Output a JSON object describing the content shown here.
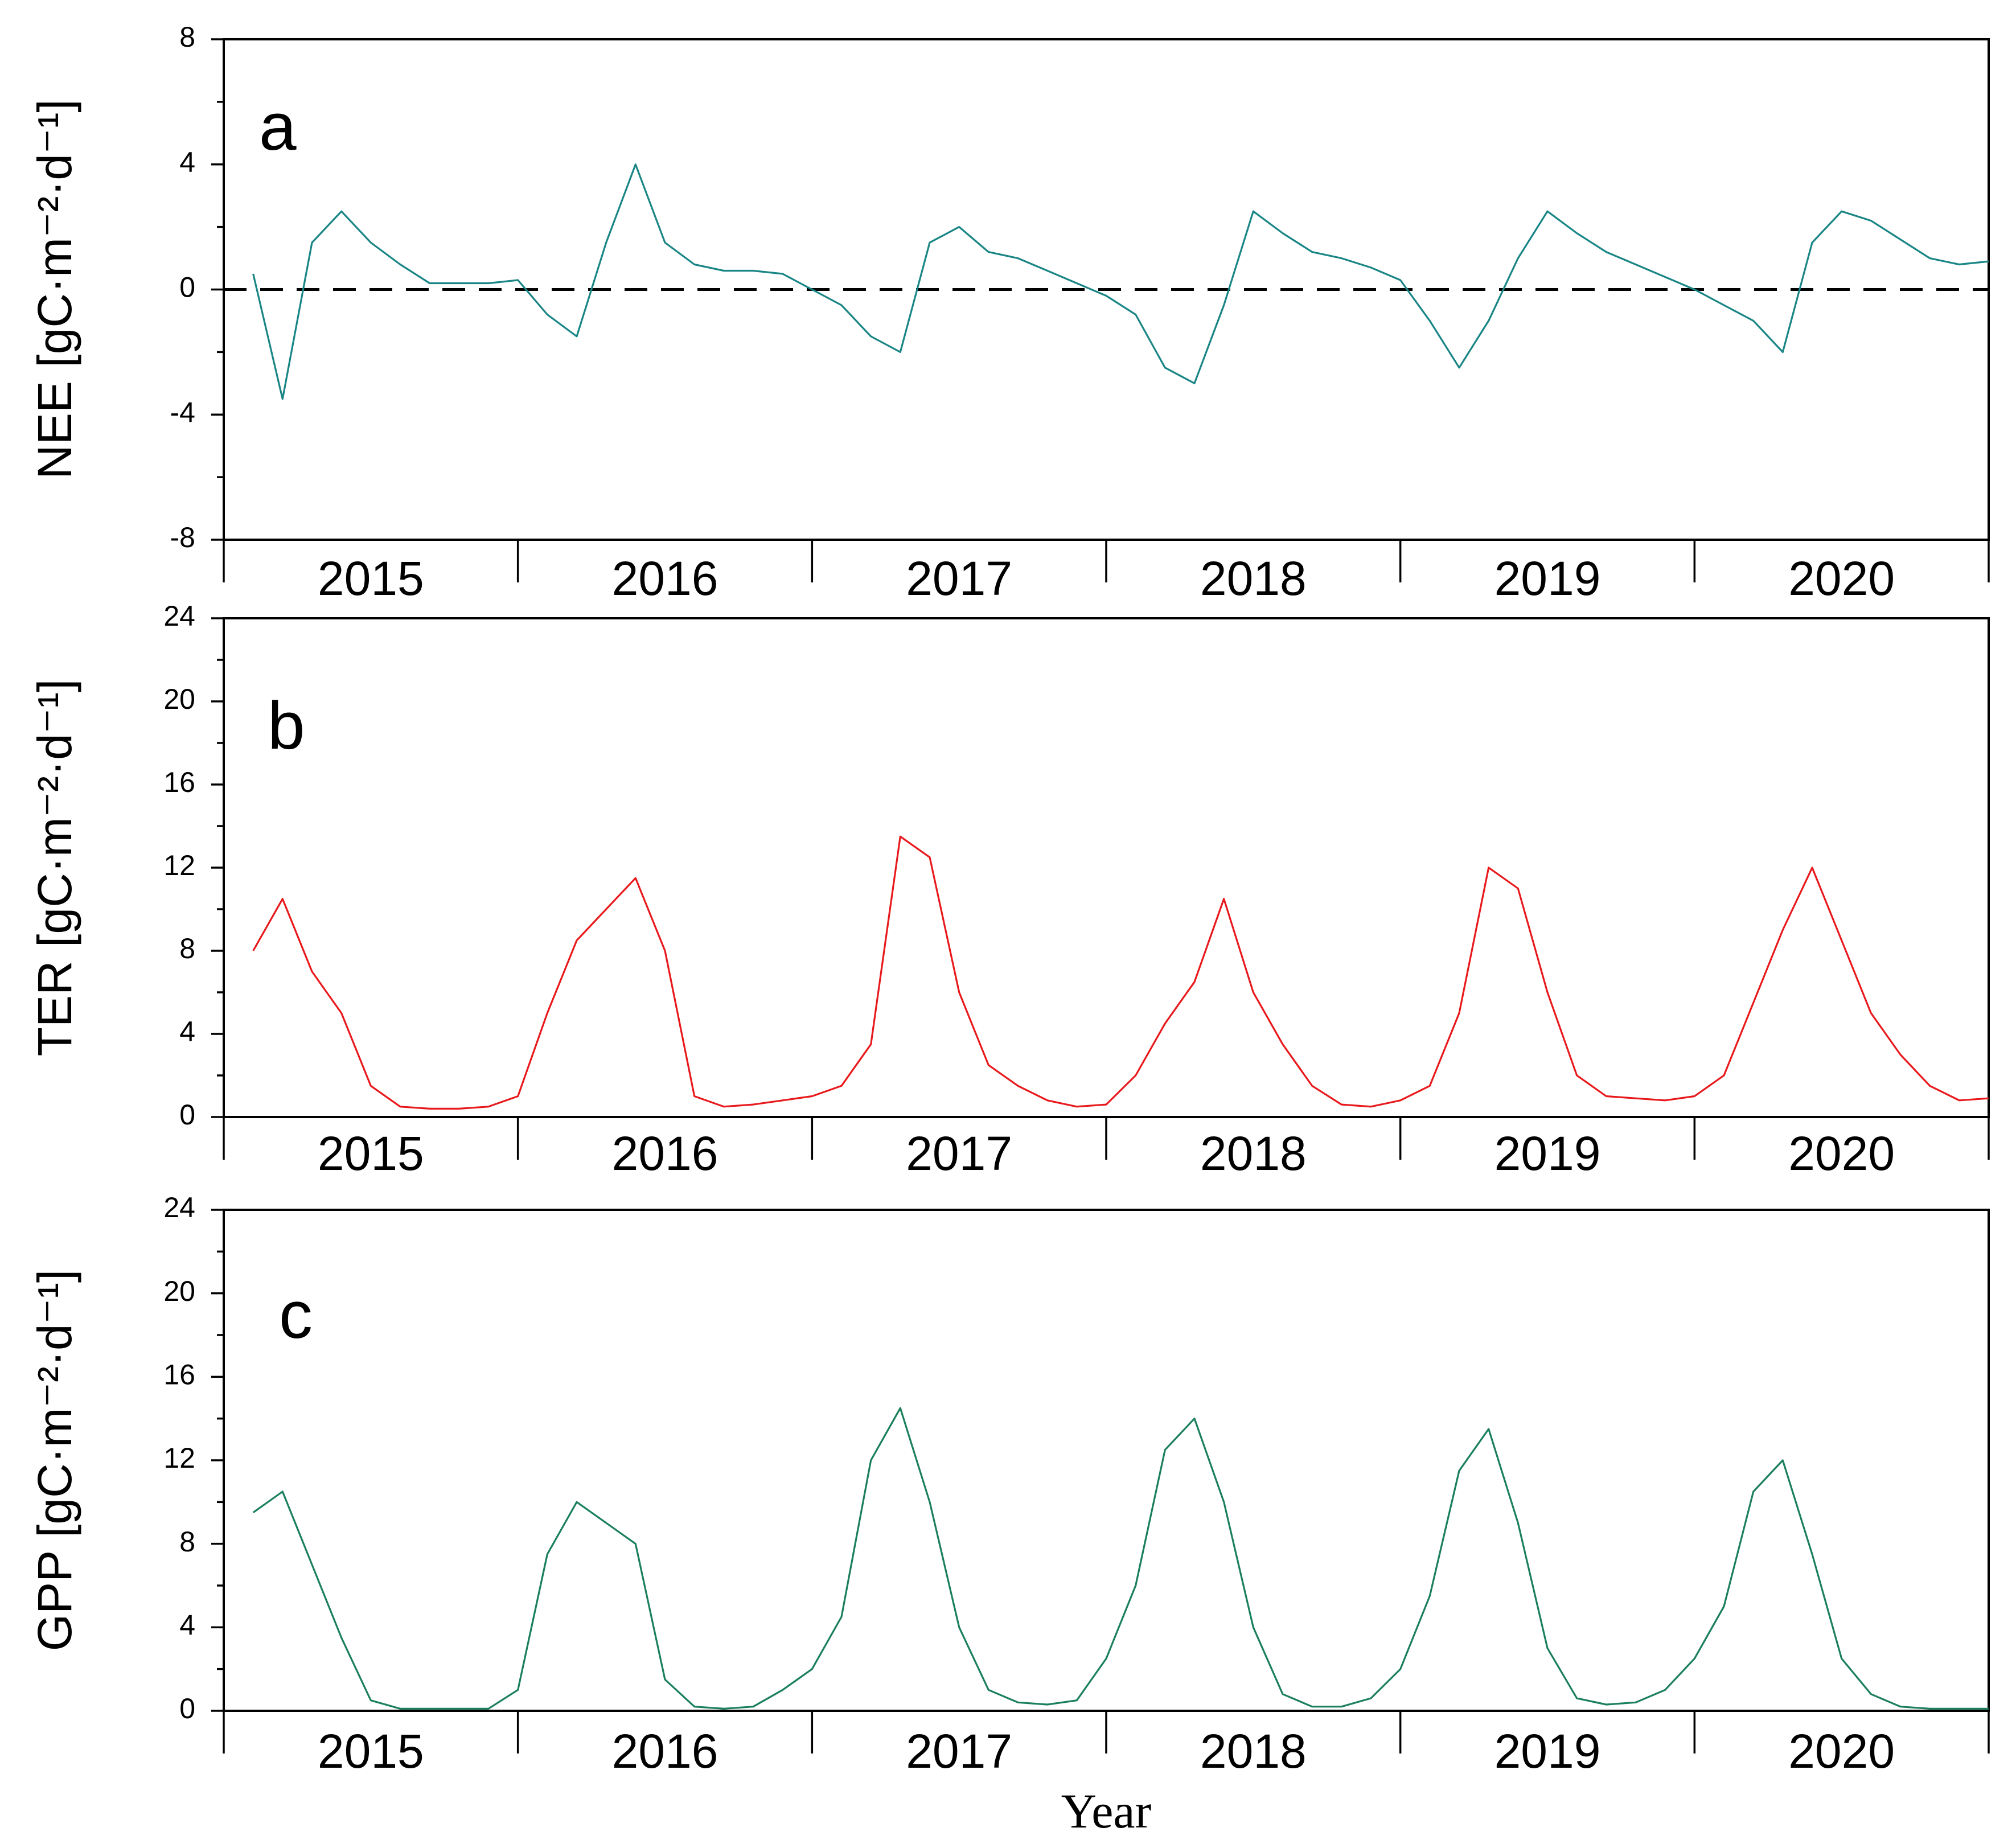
{
  "chart_data": [
    {
      "type": "line",
      "panel_label": "a",
      "ylabel": "NEE [gC·m⁻²·d⁻¹]",
      "ylim": [
        -8,
        8
      ],
      "yticks": [
        -8,
        -4,
        0,
        4,
        8
      ],
      "categories": [
        "2015",
        "2016",
        "2017",
        "2018",
        "2019",
        "2020"
      ],
      "reference_line": 0,
      "series": [
        {
          "name": "NEE",
          "color": "#1A8585",
          "x": [
            2015.1,
            2015.2,
            2015.3,
            2015.4,
            2015.5,
            2015.6,
            2015.7,
            2015.8,
            2015.9,
            2016.0,
            2016.1,
            2016.2,
            2016.3,
            2016.4,
            2016.5,
            2016.6,
            2016.7,
            2016.8,
            2016.9,
            2017.0,
            2017.1,
            2017.2,
            2017.3,
            2017.4,
            2017.5,
            2017.6,
            2017.7,
            2017.8,
            2017.9,
            2018.0,
            2018.1,
            2018.2,
            2018.3,
            2018.4,
            2018.5,
            2018.6,
            2018.7,
            2018.8,
            2018.9,
            2019.0,
            2019.1,
            2019.2,
            2019.3,
            2019.4,
            2019.5,
            2019.6,
            2019.7,
            2019.8,
            2019.9,
            2020.0,
            2020.1,
            2020.2,
            2020.3,
            2020.4,
            2020.5,
            2020.6,
            2020.7,
            2020.8,
            2020.9,
            2021.0
          ],
          "values": [
            0.5,
            -3.5,
            1.5,
            2.5,
            1.5,
            0.8,
            0.2,
            0.2,
            0.2,
            0.3,
            -0.8,
            -1.5,
            1.5,
            4.0,
            1.5,
            0.8,
            0.6,
            0.6,
            0.5,
            0.0,
            -0.5,
            -1.5,
            -2.0,
            1.5,
            2.0,
            1.2,
            1.0,
            0.6,
            0.2,
            -0.2,
            -0.8,
            -2.5,
            -3.0,
            -0.5,
            2.5,
            1.8,
            1.2,
            1.0,
            0.7,
            0.3,
            -1.0,
            -2.5,
            -1.0,
            1.0,
            2.5,
            1.8,
            1.2,
            0.8,
            0.4,
            0.0,
            -0.5,
            -1.0,
            -2.0,
            1.5,
            2.5,
            2.2,
            1.6,
            1.0,
            0.8,
            0.9
          ]
        }
      ]
    },
    {
      "type": "line",
      "panel_label": "b",
      "ylabel": "TER [gC·m⁻²·d⁻¹]",
      "ylim": [
        0,
        24
      ],
      "yticks": [
        0,
        4,
        8,
        12,
        16,
        20,
        24
      ],
      "categories": [
        "2015",
        "2016",
        "2017",
        "2018",
        "2019",
        "2020"
      ],
      "series": [
        {
          "name": "TER",
          "color": "#E8191C",
          "x": [
            2015.1,
            2015.2,
            2015.3,
            2015.4,
            2015.5,
            2015.6,
            2015.7,
            2015.8,
            2015.9,
            2016.0,
            2016.1,
            2016.2,
            2016.3,
            2016.4,
            2016.5,
            2016.6,
            2016.7,
            2016.8,
            2016.9,
            2017.0,
            2017.1,
            2017.2,
            2017.3,
            2017.4,
            2017.5,
            2017.6,
            2017.7,
            2017.8,
            2017.9,
            2018.0,
            2018.1,
            2018.2,
            2018.3,
            2018.4,
            2018.5,
            2018.6,
            2018.7,
            2018.8,
            2018.9,
            2019.0,
            2019.1,
            2019.2,
            2019.3,
            2019.4,
            2019.5,
            2019.6,
            2019.7,
            2019.8,
            2019.9,
            2020.0,
            2020.1,
            2020.2,
            2020.3,
            2020.4,
            2020.5,
            2020.6,
            2020.7,
            2020.8,
            2020.9,
            2021.0
          ],
          "values": [
            8.0,
            10.5,
            7.0,
            5.0,
            1.5,
            0.5,
            0.4,
            0.4,
            0.5,
            1.0,
            5.0,
            8.5,
            10.0,
            11.5,
            8.0,
            1.0,
            0.5,
            0.6,
            0.8,
            1.0,
            1.5,
            3.5,
            13.5,
            12.5,
            6.0,
            2.5,
            1.5,
            0.8,
            0.5,
            0.6,
            2.0,
            4.5,
            6.5,
            10.5,
            6.0,
            3.5,
            1.5,
            0.6,
            0.5,
            0.8,
            1.5,
            5.0,
            12.0,
            11.0,
            6.0,
            2.0,
            1.0,
            0.9,
            0.8,
            1.0,
            2.0,
            5.5,
            9.0,
            12.0,
            8.5,
            5.0,
            3.0,
            1.5,
            0.8,
            0.9
          ]
        }
      ]
    },
    {
      "type": "line",
      "panel_label": "c",
      "ylabel": "GPP [gC·m⁻²·d⁻¹]",
      "xlabel": "Year",
      "ylim": [
        0,
        24
      ],
      "yticks": [
        0,
        4,
        8,
        12,
        16,
        20,
        24
      ],
      "categories": [
        "2015",
        "2016",
        "2017",
        "2018",
        "2019",
        "2020"
      ],
      "series": [
        {
          "name": "GPP",
          "color": "#1A7F5A",
          "x": [
            2015.1,
            2015.2,
            2015.3,
            2015.4,
            2015.5,
            2015.6,
            2015.7,
            2015.8,
            2015.9,
            2016.0,
            2016.1,
            2016.2,
            2016.3,
            2016.4,
            2016.5,
            2016.6,
            2016.7,
            2016.8,
            2016.9,
            2017.0,
            2017.1,
            2017.2,
            2017.3,
            2017.4,
            2017.5,
            2017.6,
            2017.7,
            2017.8,
            2017.9,
            2018.0,
            2018.1,
            2018.2,
            2018.3,
            2018.4,
            2018.5,
            2018.6,
            2018.7,
            2018.8,
            2018.9,
            2019.0,
            2019.1,
            2019.2,
            2019.3,
            2019.4,
            2019.5,
            2019.6,
            2019.7,
            2019.8,
            2019.9,
            2020.0,
            2020.1,
            2020.2,
            2020.3,
            2020.4,
            2020.5,
            2020.6,
            2020.7,
            2020.8,
            2020.9,
            2021.0
          ],
          "values": [
            9.5,
            10.5,
            7.0,
            3.5,
            0.5,
            0.1,
            0.1,
            0.1,
            0.1,
            1.0,
            7.5,
            10.0,
            9.0,
            8.0,
            1.5,
            0.2,
            0.1,
            0.2,
            1.0,
            2.0,
            4.5,
            12.0,
            14.5,
            10.0,
            4.0,
            1.0,
            0.4,
            0.3,
            0.5,
            2.5,
            6.0,
            12.5,
            14.0,
            10.0,
            4.0,
            0.8,
            0.2,
            0.2,
            0.6,
            2.0,
            5.5,
            11.5,
            13.5,
            9.0,
            3.0,
            0.6,
            0.3,
            0.4,
            1.0,
            2.5,
            5.0,
            10.5,
            12.0,
            7.5,
            2.5,
            0.8,
            0.2,
            0.1,
            0.1,
            0.1
          ]
        }
      ]
    }
  ]
}
